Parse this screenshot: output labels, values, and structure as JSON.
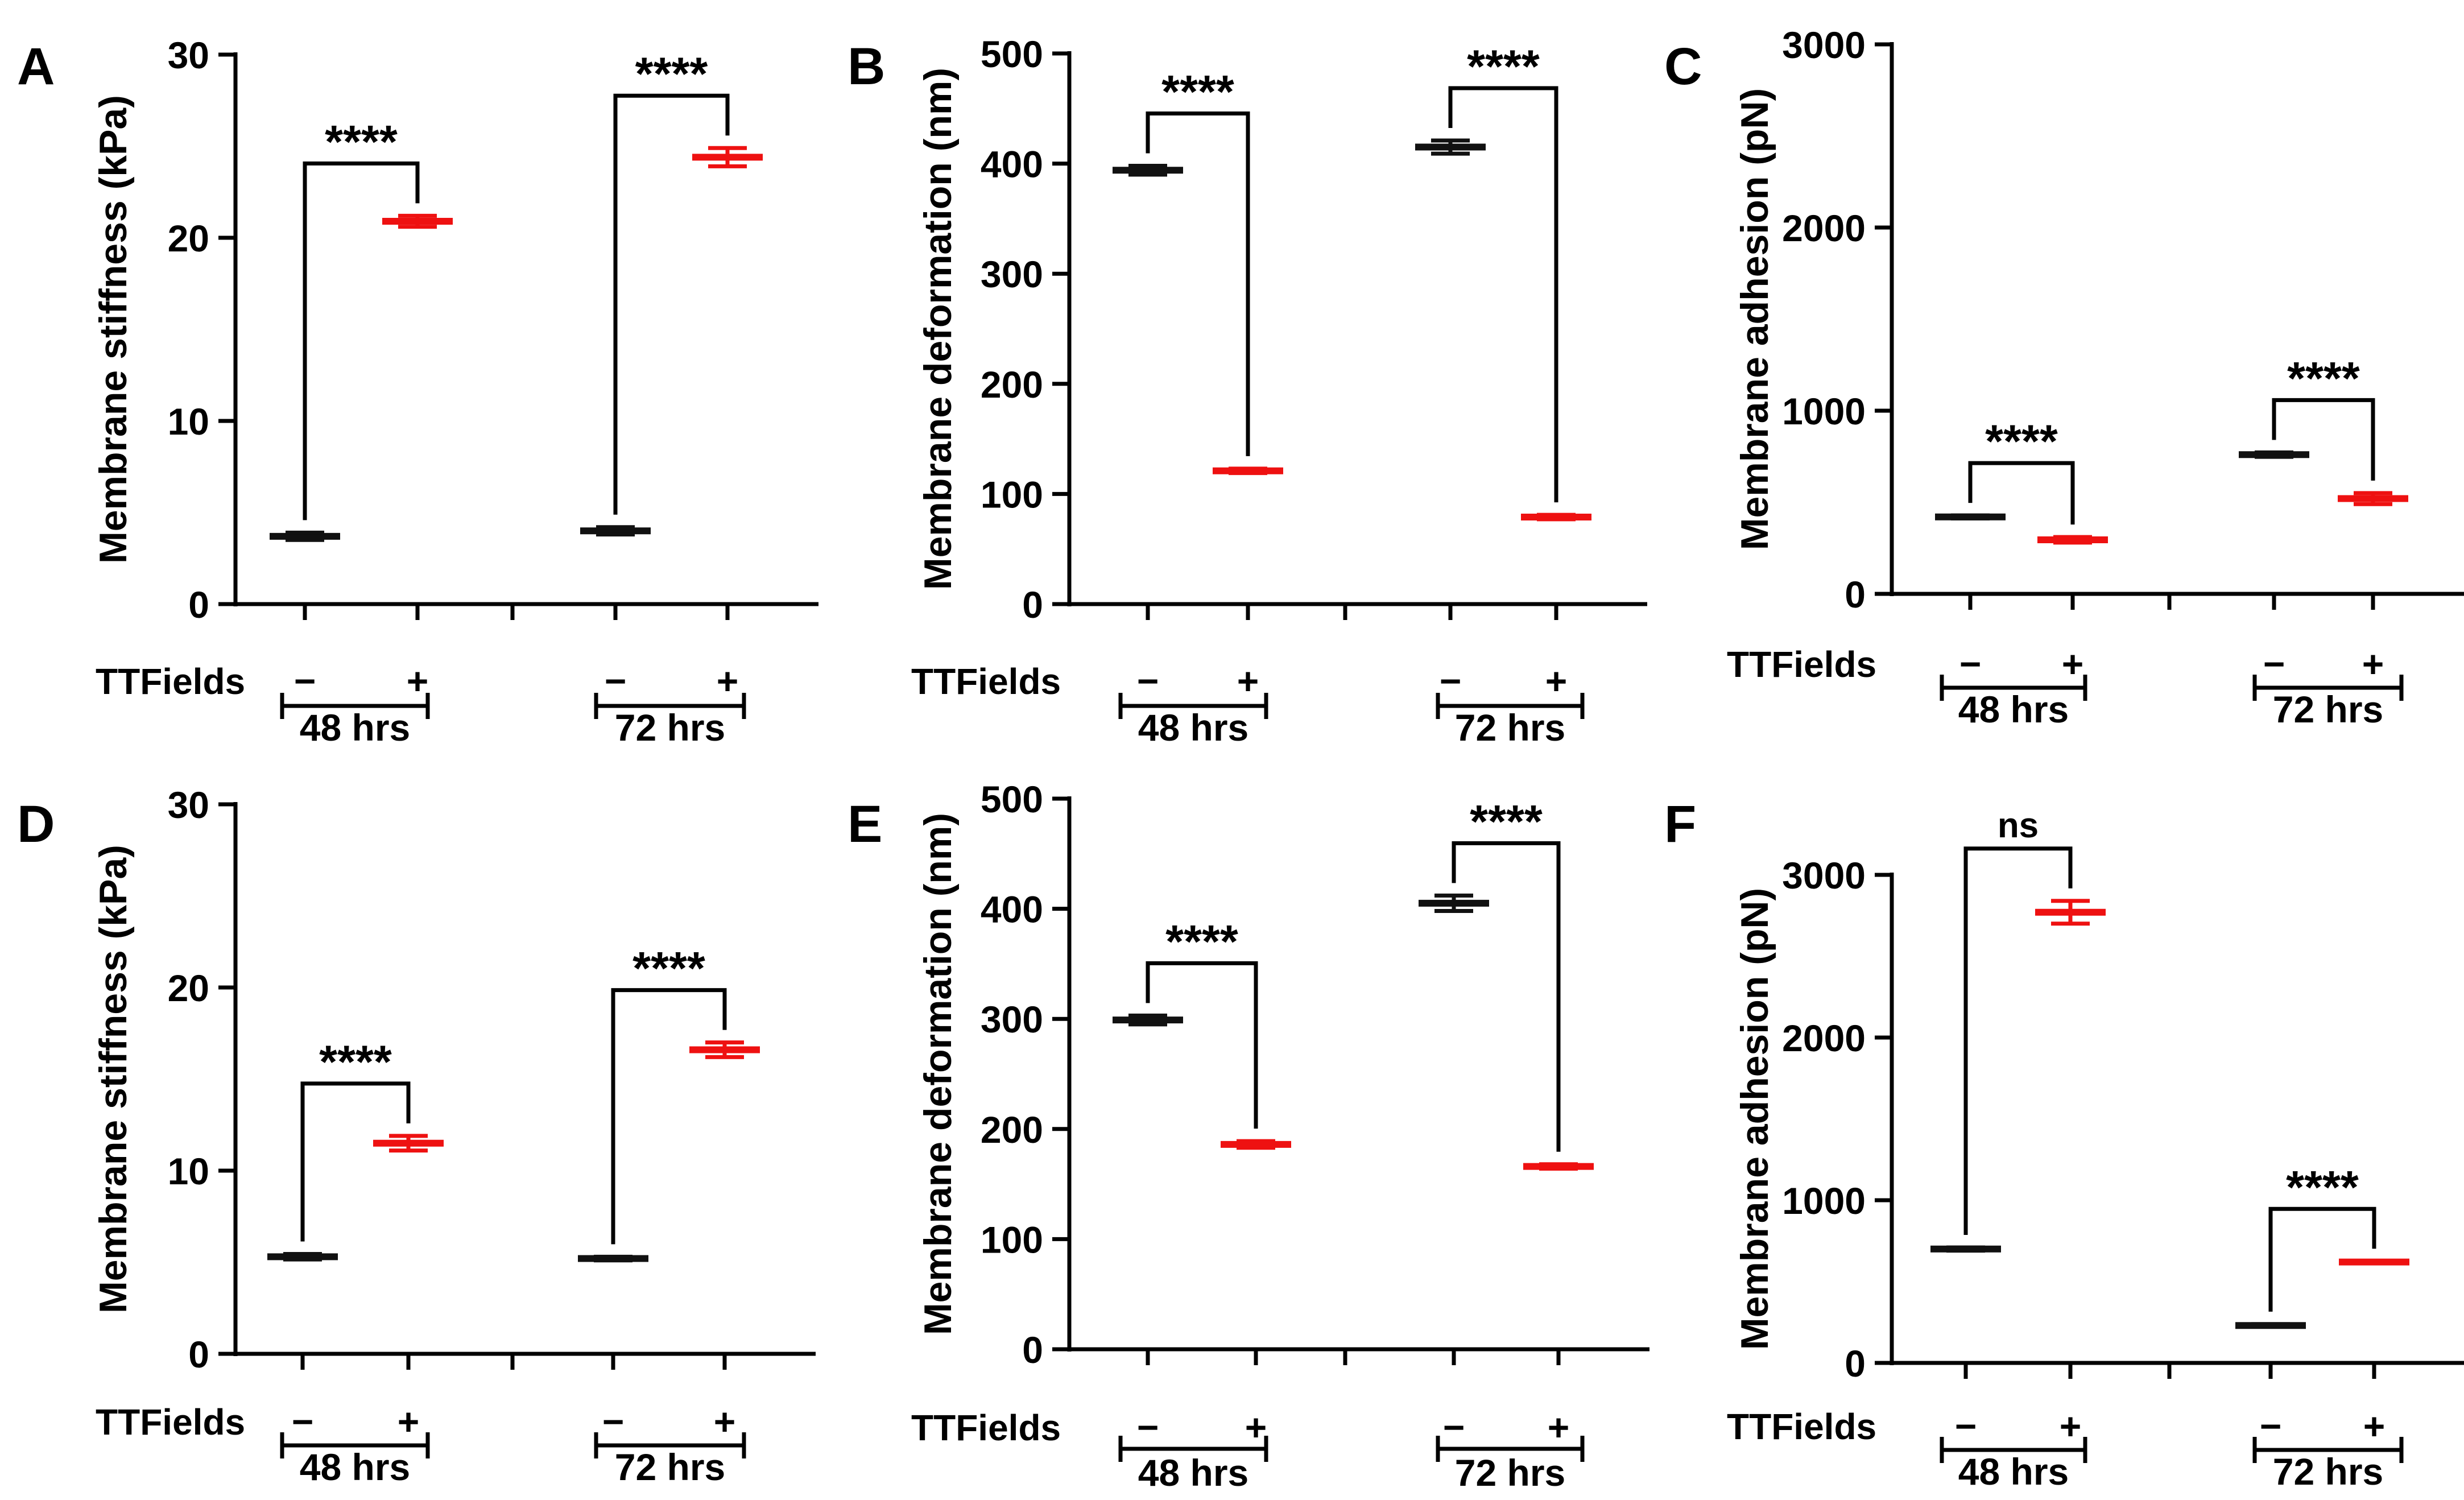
{
  "colors": {
    "control": "#111111",
    "treated": "#ee1111"
  },
  "treatment_label": "TTFields",
  "condition_symbols": [
    "−",
    "+"
  ],
  "chart_data": [
    {
      "panel": "A",
      "type": "scatter",
      "ylabel": "Membrane stiffness (kPa)",
      "ylim": [
        0,
        30
      ],
      "yticks": [
        "0",
        "10",
        "20",
        "30"
      ],
      "tick_values": [
        0,
        10,
        20,
        30
      ],
      "groups": [
        "48 hrs",
        "72 hrs"
      ],
      "series": [
        {
          "name": "TTFields −",
          "values": [
            3.7,
            4.0
          ],
          "errors": [
            0.2,
            0.2
          ]
        },
        {
          "name": "TTFields +",
          "values": [
            20.9,
            24.4
          ],
          "errors": [
            0.3,
            0.5
          ]
        }
      ],
      "significance": [
        "****",
        "****"
      ]
    },
    {
      "panel": "B",
      "type": "scatter",
      "ylabel": "Membrane deformation (nm)",
      "ylim": [
        0,
        500
      ],
      "yticks": [
        "0",
        "100",
        "200",
        "300",
        "400",
        "500"
      ],
      "tick_values": [
        0,
        100,
        200,
        300,
        400,
        500
      ],
      "groups": [
        "48 hrs",
        "72 hrs"
      ],
      "series": [
        {
          "name": "TTFields −",
          "values": [
            394,
            415
          ],
          "errors": [
            4,
            6
          ]
        },
        {
          "name": "TTFields +",
          "values": [
            121,
            79
          ],
          "errors": [
            2,
            2
          ]
        }
      ],
      "significance": [
        "****",
        "****"
      ]
    },
    {
      "panel": "C",
      "type": "scatter",
      "ylabel": "Membrane adhesion (pN)",
      "ylim": [
        0,
        3000
      ],
      "yticks": [
        "0",
        "1000",
        "2000",
        "3000"
      ],
      "tick_values": [
        0,
        1000,
        2000,
        3000
      ],
      "groups": [
        "48 hrs",
        "72 hrs"
      ],
      "series": [
        {
          "name": "TTFields −",
          "values": [
            420,
            760
          ],
          "errors": [
            8,
            12
          ]
        },
        {
          "name": "TTFields +",
          "values": [
            295,
            520
          ],
          "errors": [
            15,
            30
          ]
        }
      ],
      "significance": [
        "****",
        "****"
      ]
    },
    {
      "panel": "D",
      "type": "scatter",
      "ylabel": "Membrane stiffness (kPa)",
      "ylim": [
        0,
        30
      ],
      "yticks": [
        "0",
        "10",
        "20",
        "30"
      ],
      "tick_values": [
        0,
        10,
        20,
        30
      ],
      "groups": [
        "48 hrs",
        "72 hrs"
      ],
      "series": [
        {
          "name": "TTFields −",
          "values": [
            5.3,
            5.2
          ],
          "errors": [
            0.15,
            0.1
          ]
        },
        {
          "name": "TTFields +",
          "values": [
            11.5,
            16.6
          ],
          "errors": [
            0.4,
            0.4
          ]
        }
      ],
      "significance": [
        "****",
        "****"
      ]
    },
    {
      "panel": "E",
      "type": "scatter",
      "ylabel": "Membrane deformation (nm)",
      "ylim": [
        0,
        500
      ],
      "yticks": [
        "0",
        "100",
        "200",
        "300",
        "400",
        "500"
      ],
      "tick_values": [
        0,
        100,
        200,
        300,
        400,
        500
      ],
      "groups": [
        "48 hrs",
        "72 hrs"
      ],
      "series": [
        {
          "name": "TTFields −",
          "values": [
            299,
            405
          ],
          "errors": [
            4,
            7
          ]
        },
        {
          "name": "TTFields +",
          "values": [
            186,
            166
          ],
          "errors": [
            3,
            2
          ]
        }
      ],
      "significance": [
        "****",
        "****"
      ]
    },
    {
      "panel": "F",
      "type": "scatter",
      "ylabel": "Membrane adhesion (pN)",
      "ylim": [
        0,
        3000
      ],
      "yticks": [
        "0",
        "1000",
        "2000",
        "3000"
      ],
      "tick_values": [
        0,
        1000,
        2000,
        3000
      ],
      "groups": [
        "48 hrs",
        "72 hrs"
      ],
      "series": [
        {
          "name": "TTFields −",
          "values": [
            700,
            230
          ],
          "errors": [
            10,
            8
          ]
        },
        {
          "name": "TTFields +",
          "values": [
            2770,
            620
          ],
          "errors": [
            70,
            5
          ]
        }
      ],
      "significance": [
        "ns",
        "****"
      ]
    }
  ]
}
